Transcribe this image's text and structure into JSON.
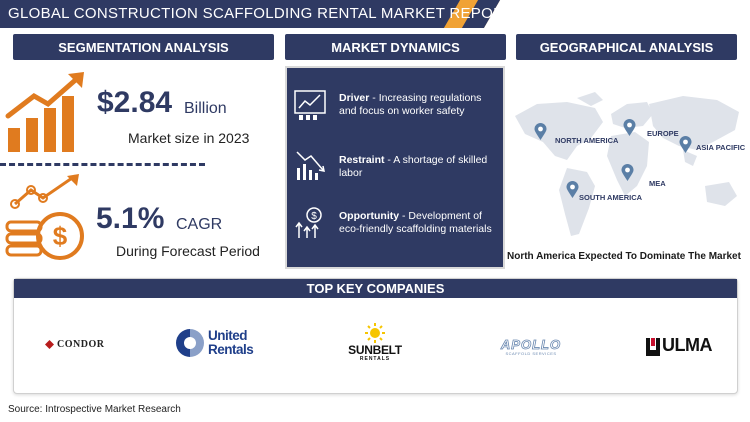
{
  "title": "GLOBAL CONSTRUCTION SCAFFOLDING RENTAL MARKET REPORT",
  "sections": {
    "segmentation": "SEGMENTATION ANALYSIS",
    "dynamics": "MARKET DYNAMICS",
    "geographical": "GEOGRAPHICAL ANALYSIS",
    "companies": "TOP KEY COMPANIES"
  },
  "market_size": {
    "value": "$2.84",
    "unit": "Billion",
    "label": "Market size in 2023"
  },
  "cagr": {
    "value": "5.1%",
    "unit": "CAGR",
    "label": "During Forecast Period"
  },
  "dynamics": [
    {
      "title": "Driver",
      "text": "Increasing regulations and focus on worker safety",
      "icon": "chart-monitor-icon"
    },
    {
      "title": "Restraint",
      "text": "A shortage of skilled labor",
      "icon": "declining-chart-icon"
    },
    {
      "title": "Opportunity",
      "text": "Development of eco-friendly scaffolding materials",
      "icon": "growth-dollar-icon"
    }
  ],
  "regions": [
    "NORTH AMERICA",
    "EUROPE",
    "ASIA PACIFIC",
    "MEA",
    "SOUTH AMERICA"
  ],
  "geo_caption": "North America Expected To Dominate The Market",
  "companies": [
    "CONDOR",
    "United Rentals",
    "SUNBELT",
    "RENTALS",
    "APOLLO",
    "SCAFFOLD SERVICES",
    "ULMA"
  ],
  "source": "Source: Introspective Market Research",
  "colors": {
    "navy": "#2f3a63",
    "orange": "#e07b1f",
    "accent": "#f0a235"
  }
}
